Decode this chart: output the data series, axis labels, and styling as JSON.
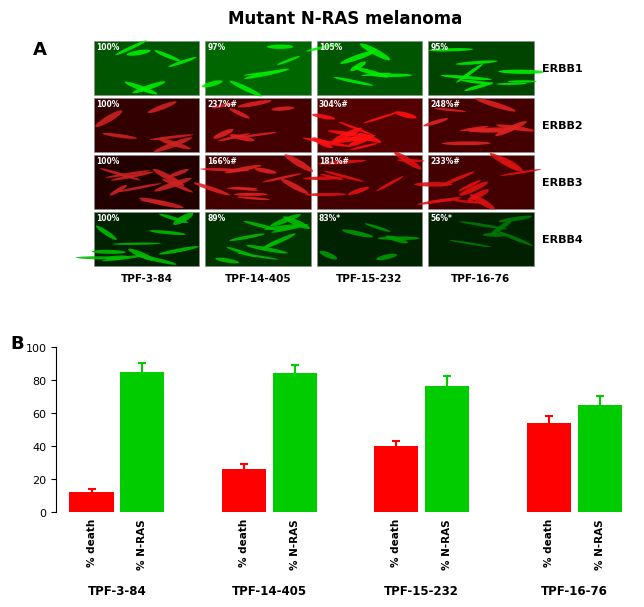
{
  "title": "Mutant N-RAS melanoma",
  "panel_a_label": "A",
  "panel_b_label": "B",
  "erbb_labels": [
    "ERBB1",
    "ERBB2",
    "ERBB3",
    "ERBB4"
  ],
  "tpf_labels": [
    "TPF-3-84",
    "TPF-14-405",
    "TPF-15-232",
    "TPF-16-76"
  ],
  "cell_annotations": [
    [
      "100%",
      "97%",
      "105%",
      "95%"
    ],
    [
      "100%",
      "237%#",
      "304%#",
      "248%#"
    ],
    [
      "100%",
      "166%#",
      "181%#",
      "233%#"
    ],
    [
      "100%",
      "89%",
      "83%*",
      "56%*"
    ]
  ],
  "img_bg_colors": [
    [
      "#005500",
      "#006600",
      "#005500",
      "#004400"
    ],
    [
      "#330000",
      "#440000",
      "#550000",
      "#440000"
    ],
    [
      "#220000",
      "#440000",
      "#440000",
      "#440000"
    ],
    [
      "#002200",
      "#003300",
      "#002200",
      "#002000"
    ]
  ],
  "img_fg_colors": [
    [
      "#00ee00",
      "#00ee00",
      "#00ee00",
      "#00ee00"
    ],
    [
      "#cc2222",
      "#dd2222",
      "#ff1111",
      "#dd2222"
    ],
    [
      "#cc2222",
      "#dd2222",
      "#dd1111",
      "#dd1111"
    ],
    [
      "#00bb00",
      "#00bb00",
      "#009900",
      "#007700"
    ]
  ],
  "bar_values": [
    12,
    85,
    26,
    84,
    40,
    76,
    54,
    65
  ],
  "bar_errors": [
    2,
    5,
    3,
    5,
    3,
    6,
    4,
    5
  ],
  "bar_colors": [
    "#ff0000",
    "#00cc00",
    "#ff0000",
    "#00cc00",
    "#ff0000",
    "#00cc00",
    "#ff0000",
    "#00cc00"
  ],
  "bar_xtick_labels": [
    "% death",
    "% N-RAS",
    "% death",
    "% N-RAS",
    "% death",
    "% N-RAS",
    "% death",
    "% N-RAS"
  ],
  "bar_group_labels": [
    "TPF-3-84",
    "TPF-14-405",
    "TPF-15-232",
    "TPF-16-76"
  ],
  "ylim": [
    0,
    100
  ],
  "yticks": [
    0,
    20,
    40,
    60,
    80,
    100
  ]
}
